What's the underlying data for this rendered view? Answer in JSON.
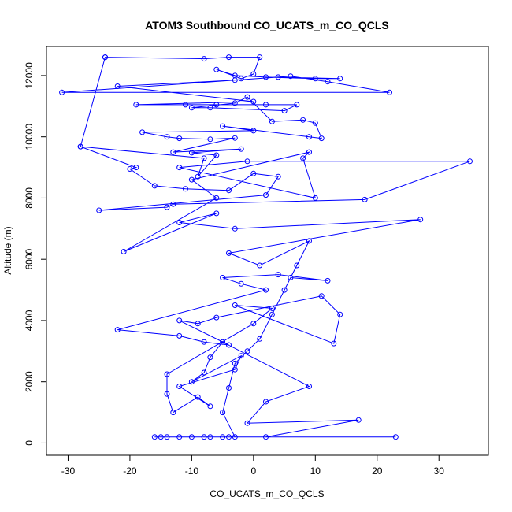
{
  "chart_data": {
    "type": "line",
    "title": "ATOM3 Southbound CO_UCATS_m_CO_QCLS",
    "xlabel": "CO_UCATS_m_CO_QCLS",
    "ylabel": "Altitude (m)",
    "xlim": [
      -33.5,
      38
    ],
    "ylim": [
      -400,
      12950
    ],
    "xticks": [
      -30,
      -20,
      -10,
      0,
      10,
      20,
      30
    ],
    "yticks": [
      0,
      2000,
      4000,
      6000,
      8000,
      10000,
      12000
    ],
    "grid": false,
    "legend": "none",
    "series": [
      {
        "color": "#0000ff",
        "marker": "circle",
        "points": [
          [
            -24,
            12600
          ],
          [
            -28,
            9680
          ],
          [
            -24,
            12600
          ],
          [
            -8,
            12550
          ],
          [
            -4,
            12600
          ],
          [
            1,
            12600
          ],
          [
            0,
            12050
          ],
          [
            -2,
            11900
          ],
          [
            -6,
            12200
          ],
          [
            -3,
            12000
          ],
          [
            2,
            11950
          ],
          [
            10,
            11900
          ],
          [
            14,
            11900
          ],
          [
            4,
            11950
          ],
          [
            -31,
            11450
          ],
          [
            22,
            11450
          ],
          [
            12,
            11800
          ],
          [
            6,
            11980
          ],
          [
            -3,
            11850
          ],
          [
            -22,
            11650
          ],
          [
            0,
            11150
          ],
          [
            -19,
            11050
          ],
          [
            -11,
            11050
          ],
          [
            -6,
            11050
          ],
          [
            2,
            11050
          ],
          [
            7,
            11050
          ],
          [
            5,
            10850
          ],
          [
            -7,
            10950
          ],
          [
            -10,
            10950
          ],
          [
            -3,
            11100
          ],
          [
            -1,
            11300
          ],
          [
            3,
            10500
          ],
          [
            8,
            10550
          ],
          [
            10,
            10450
          ],
          [
            11,
            9950
          ],
          [
            9,
            10000
          ],
          [
            -5,
            10350
          ],
          [
            0,
            10200
          ],
          [
            -18,
            10150
          ],
          [
            -14,
            10000
          ],
          [
            -12,
            9950
          ],
          [
            -7,
            9920
          ],
          [
            -3,
            9960
          ],
          [
            -13,
            9500
          ],
          [
            -2,
            9600
          ],
          [
            -10,
            9480
          ],
          [
            -6,
            9400
          ],
          [
            -9,
            8700
          ],
          [
            -8,
            9300
          ],
          [
            -28,
            9680
          ],
          [
            -19,
            9000
          ],
          [
            -20,
            8950
          ],
          [
            -16,
            8400
          ],
          [
            -11,
            8300
          ],
          [
            -4,
            8250
          ],
          [
            0,
            8800
          ],
          [
            4,
            8700
          ],
          [
            2,
            8100
          ],
          [
            -25,
            7600
          ],
          [
            -14,
            7700
          ],
          [
            -13,
            7800
          ],
          [
            18,
            7950
          ],
          [
            35,
            9200
          ],
          [
            -1,
            9200
          ],
          [
            -12,
            9000
          ],
          [
            10,
            8000
          ],
          [
            8,
            9300
          ],
          [
            9,
            9500
          ],
          [
            -10,
            8600
          ],
          [
            -6,
            8000
          ],
          [
            -21,
            6250
          ],
          [
            -6,
            7500
          ],
          [
            -12,
            7200
          ],
          [
            -3,
            7000
          ],
          [
            27,
            7300
          ],
          [
            -4,
            6200
          ],
          [
            1,
            5800
          ],
          [
            9,
            6600
          ],
          [
            6,
            5400
          ],
          [
            12,
            5300
          ],
          [
            4,
            5500
          ],
          [
            -5,
            5400
          ],
          [
            -2,
            5200
          ],
          [
            2,
            5000
          ],
          [
            -22,
            3700
          ],
          [
            -12,
            3500
          ],
          [
            -8,
            3300
          ],
          [
            -4,
            3200
          ],
          [
            -12,
            4000
          ],
          [
            -9,
            3900
          ],
          [
            -6,
            4100
          ],
          [
            11,
            4800
          ],
          [
            14,
            4200
          ],
          [
            13,
            3250
          ],
          [
            -3,
            4500
          ],
          [
            3,
            4400
          ],
          [
            0,
            3900
          ],
          [
            -14,
            2250
          ],
          [
            -14,
            1600
          ],
          [
            -13,
            1000
          ],
          [
            -9,
            1500
          ],
          [
            -7,
            1200
          ],
          [
            -12,
            1850
          ],
          [
            -3,
            2400
          ],
          [
            -2,
            2850
          ],
          [
            -10,
            2000
          ],
          [
            -8,
            2300
          ],
          [
            -7,
            2800
          ],
          [
            -5,
            3300
          ],
          [
            9,
            1850
          ],
          [
            2,
            1350
          ],
          [
            -1,
            650
          ],
          [
            17,
            750
          ],
          [
            2,
            200
          ],
          [
            23,
            200
          ],
          [
            -16,
            200
          ],
          [
            -15,
            200
          ],
          [
            -14,
            200
          ],
          [
            -12,
            200
          ],
          [
            -10,
            200
          ],
          [
            -8,
            200
          ],
          [
            -7,
            200
          ],
          [
            -5,
            200
          ],
          [
            -4,
            200
          ],
          [
            -3,
            200
          ],
          [
            -5,
            1000
          ],
          [
            -4,
            1800
          ],
          [
            -3,
            2600
          ],
          [
            -1,
            3000
          ],
          [
            1,
            3400
          ],
          [
            3,
            4200
          ],
          [
            5,
            5000
          ],
          [
            7,
            5800
          ]
        ]
      }
    ]
  }
}
